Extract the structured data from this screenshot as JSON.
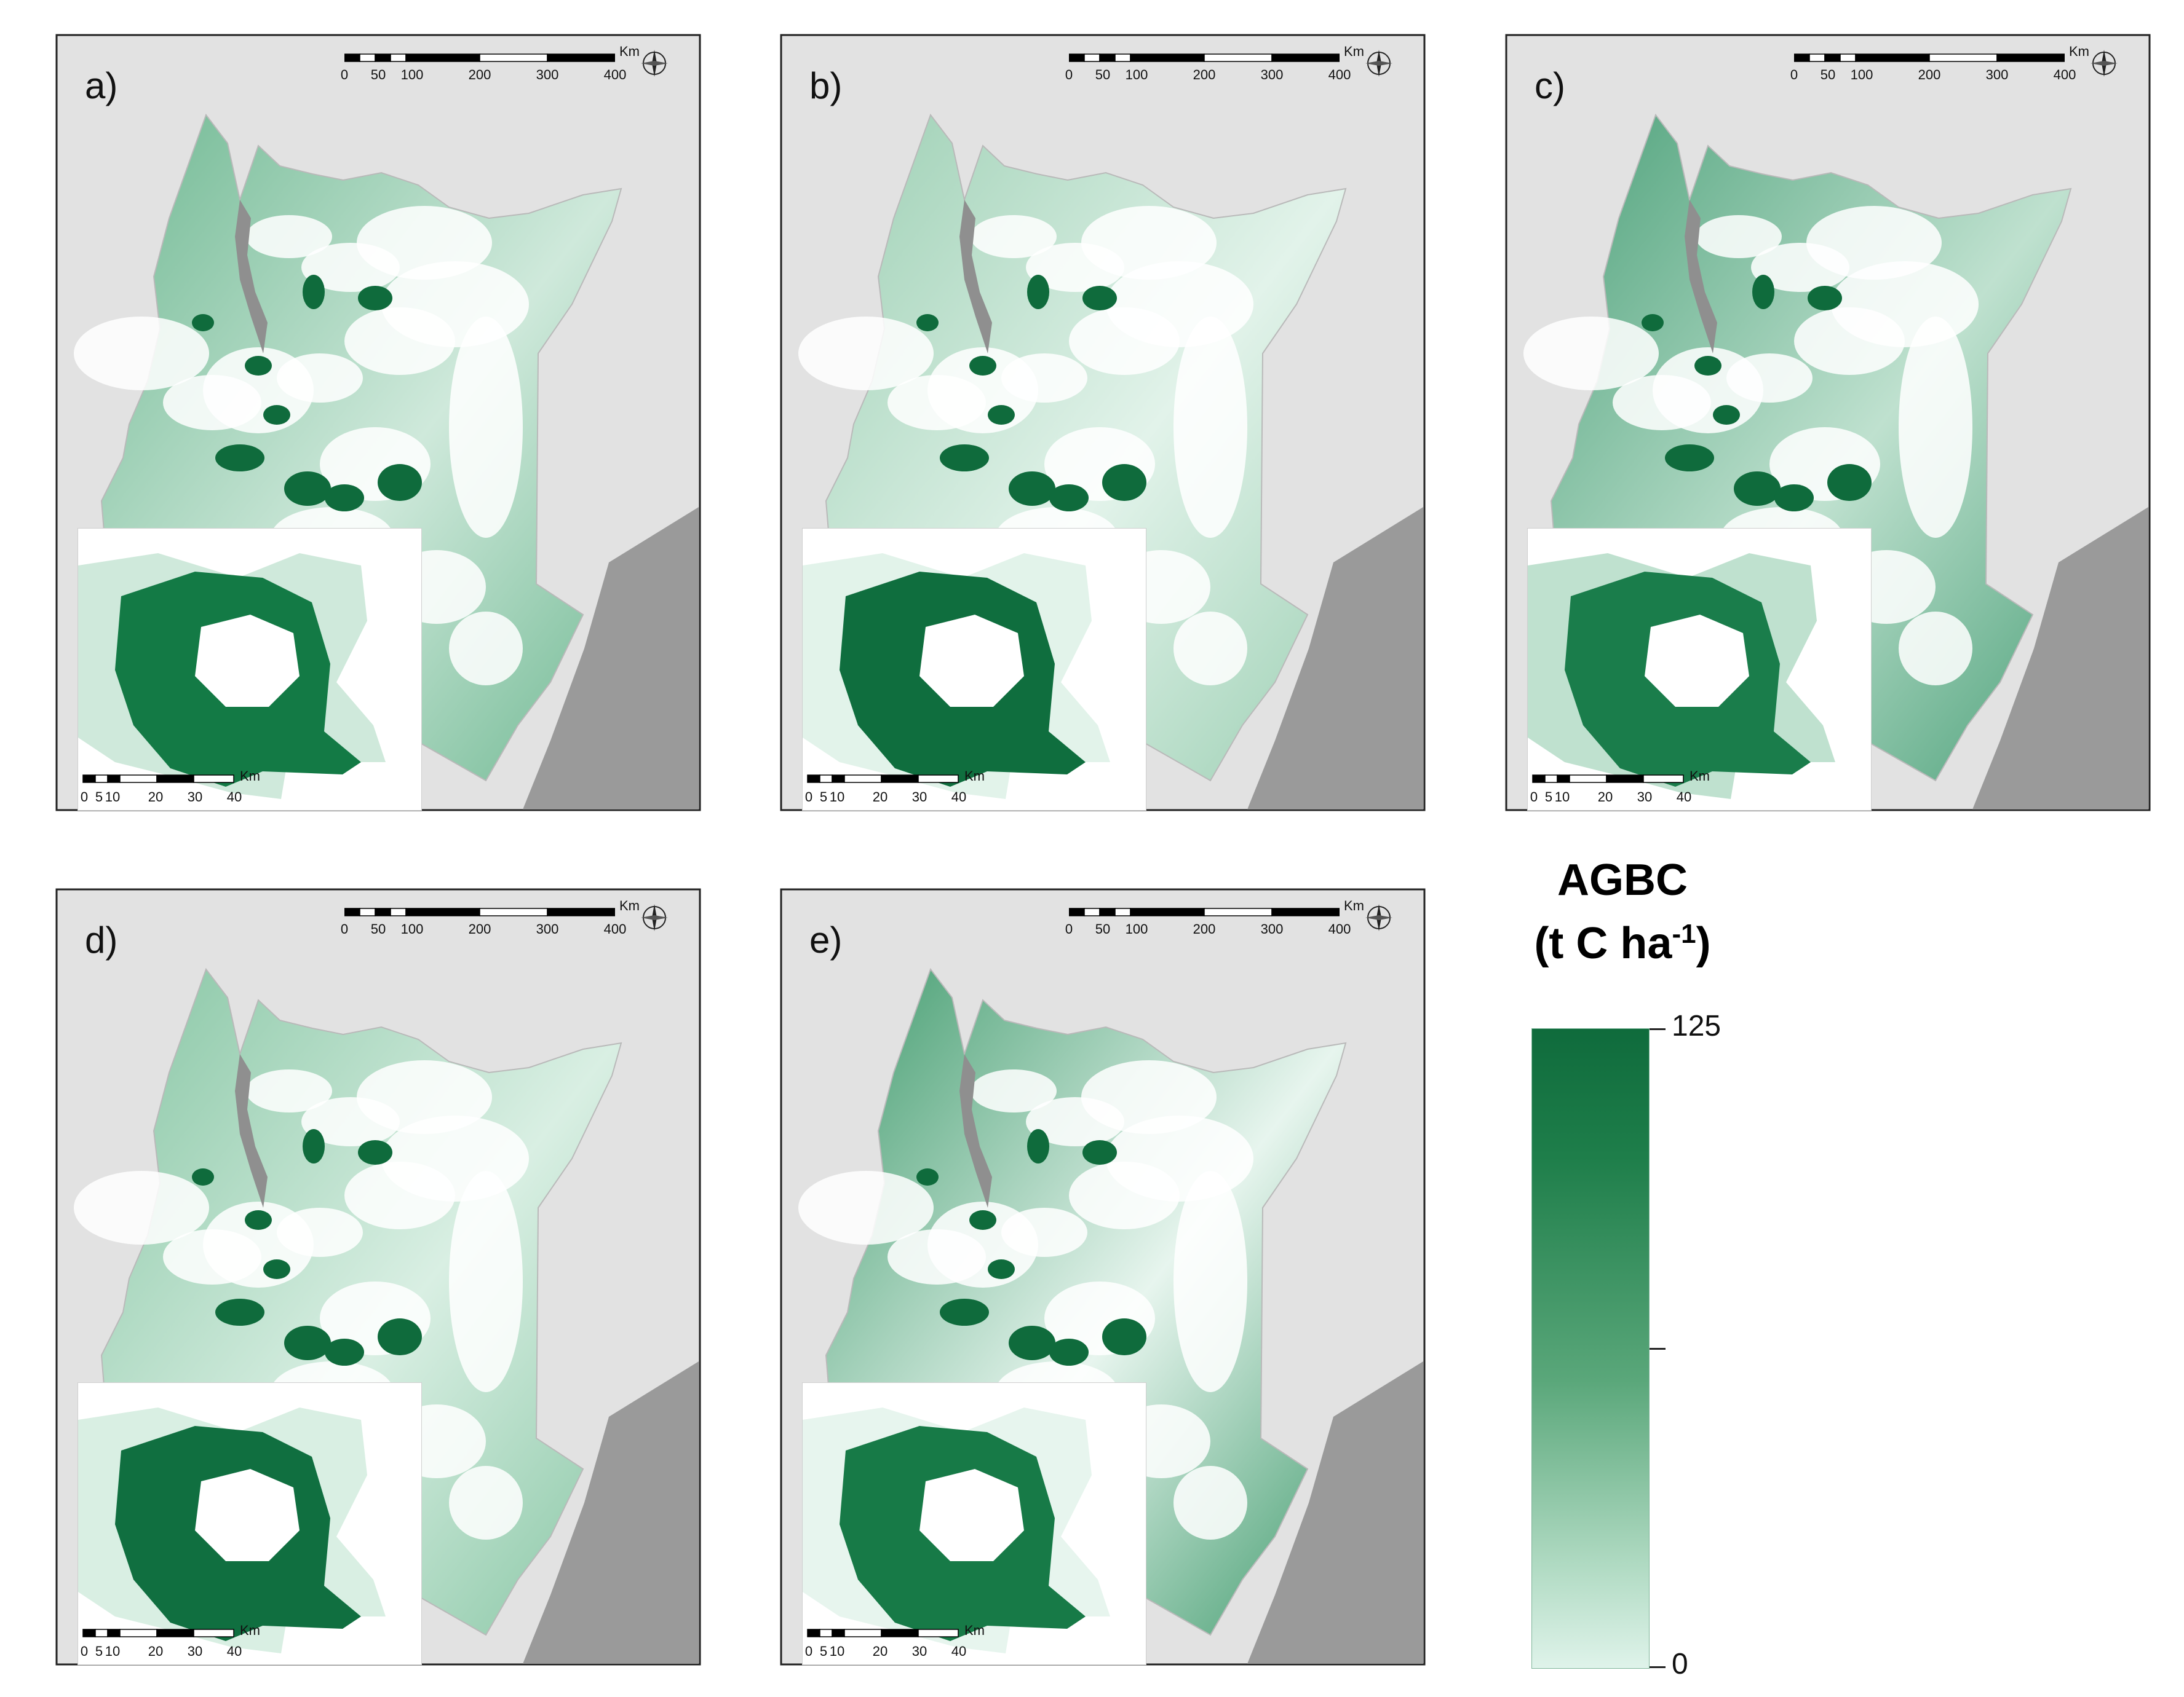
{
  "panels": [
    {
      "id": "a",
      "label": "a)",
      "shade": "#6fb892",
      "light": "#cfe9db",
      "inset_shade": "#137a45"
    },
    {
      "id": "b",
      "label": "b)",
      "shade": "#9ccfb3",
      "light": "#e2f3ea",
      "inset_shade": "#0f6e3e"
    },
    {
      "id": "c",
      "label": "c)",
      "shade": "#4da17a",
      "light": "#bfe1cf",
      "inset_shade": "#1a7d4b"
    },
    {
      "id": "d",
      "label": "d)",
      "shade": "#86c5a3",
      "light": "#d9efe3",
      "inset_shade": "#106f40"
    },
    {
      "id": "e",
      "label": "e)",
      "shade": "#3f9a6c",
      "light": "#e7f5ee",
      "inset_shade": "#177a47"
    }
  ],
  "map_scalebar": {
    "unit": "Km",
    "ticks": [
      "0",
      "50",
      "100",
      "200",
      "300",
      "400"
    ]
  },
  "inset_scalebar": {
    "unit": "Km",
    "ticks": [
      "0",
      "5",
      "10",
      "20",
      "30",
      "40"
    ]
  },
  "colors": {
    "land_outside": "#e2e2e2",
    "sea": "#9a9a9a",
    "lake": "#8f8f8f",
    "nodata": "#ffffff",
    "frame": "#222222"
  },
  "legend": {
    "title_line1": "AGBC",
    "title_line2": "(t C ha",
    "title_sup": "-1",
    "title_close": ")",
    "max": "125",
    "min": "0",
    "ramp": [
      "#0f6b3c",
      "#dff3ea"
    ]
  },
  "icons": {
    "compass": "compass-rose-icon"
  }
}
